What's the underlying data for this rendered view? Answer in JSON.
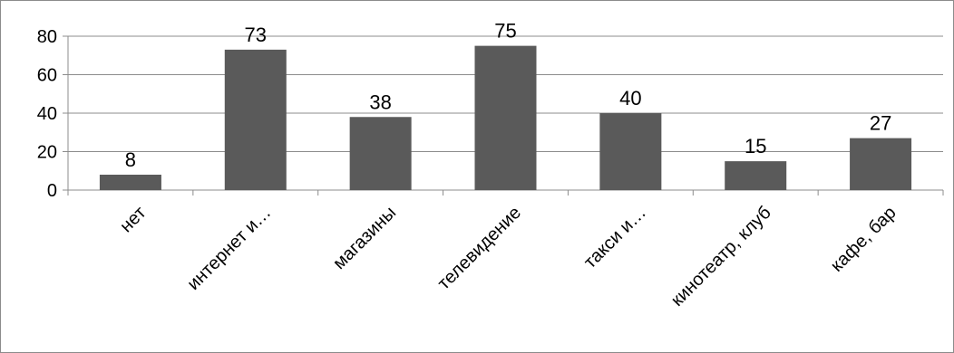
{
  "chart_data": {
    "type": "bar",
    "title": "",
    "xlabel": "",
    "ylabel": "",
    "categories": [
      "нет",
      "интернет и…",
      "магазины",
      "телевидение",
      "такси и…",
      "кинотеатр, клуб",
      "кафе, бар"
    ],
    "values": [
      8,
      73,
      38,
      75,
      40,
      15,
      27
    ],
    "data_labels": [
      "8",
      "73",
      "38",
      "75",
      "40",
      "15",
      "27"
    ],
    "ylim": [
      0,
      80
    ],
    "yticks": [
      "0",
      "20",
      "40",
      "60",
      "80"
    ],
    "grid": true,
    "legend": "none",
    "bar_color": "#5a5a5a"
  }
}
